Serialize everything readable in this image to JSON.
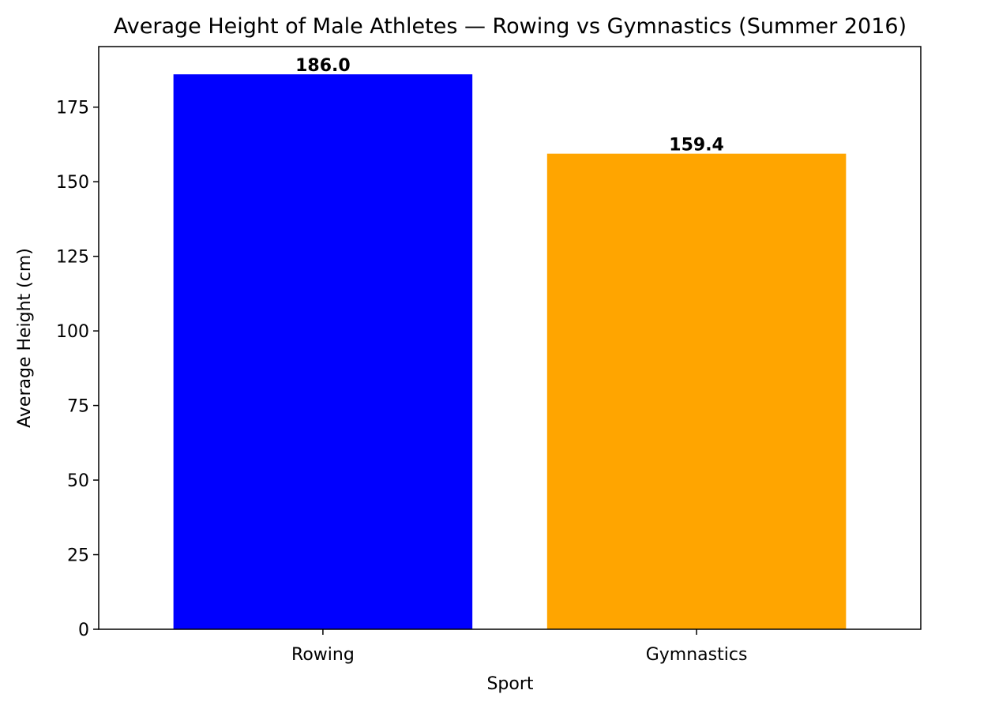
{
  "chart_data": {
    "type": "bar",
    "title": "Average Height of Male Athletes — Rowing vs Gymnastics (Summer 2016)",
    "xlabel": "Sport",
    "ylabel": "Average Height (cm)",
    "categories": [
      "Rowing",
      "Gymnastics"
    ],
    "values": [
      186.0,
      159.4
    ],
    "value_labels": [
      "186.0",
      "159.4"
    ],
    "colors": [
      "#0000ff",
      "#ffa500"
    ],
    "ylim": [
      0,
      195.3
    ],
    "yticks": [
      0,
      25,
      50,
      75,
      100,
      125,
      150,
      175
    ],
    "grid": false,
    "legend": "none"
  }
}
